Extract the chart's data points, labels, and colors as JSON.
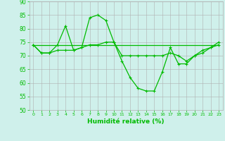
{
  "xlabel": "Humidité relative (%)",
  "bg_color": "#cff0eb",
  "grid_color": "#b0b0b0",
  "line_color": "#00bb00",
  "ylim": [
    50,
    90
  ],
  "xlim": [
    -0.5,
    23.5
  ],
  "yticks": [
    50,
    55,
    60,
    65,
    70,
    75,
    80,
    85,
    90
  ],
  "xticks": [
    0,
    1,
    2,
    3,
    4,
    5,
    6,
    7,
    8,
    9,
    10,
    11,
    12,
    13,
    14,
    15,
    16,
    17,
    18,
    19,
    20,
    21,
    22,
    23
  ],
  "series1": [
    74,
    71,
    71,
    74,
    81,
    72,
    73,
    84,
    85,
    83,
    75,
    68,
    62,
    58,
    57,
    57,
    64,
    73,
    67,
    67,
    70,
    72,
    73,
    74
  ],
  "series2": [
    74,
    71,
    71,
    72,
    72,
    72,
    73,
    74,
    74,
    75,
    75,
    70,
    70,
    70,
    70,
    70,
    70,
    71,
    70,
    68,
    70,
    71,
    73,
    75
  ],
  "series3": [
    74,
    74,
    74,
    74,
    74,
    74,
    74,
    74,
    74,
    74,
    74,
    74,
    74,
    74,
    74,
    74,
    74,
    74,
    74,
    74,
    74,
    74,
    74,
    74
  ]
}
